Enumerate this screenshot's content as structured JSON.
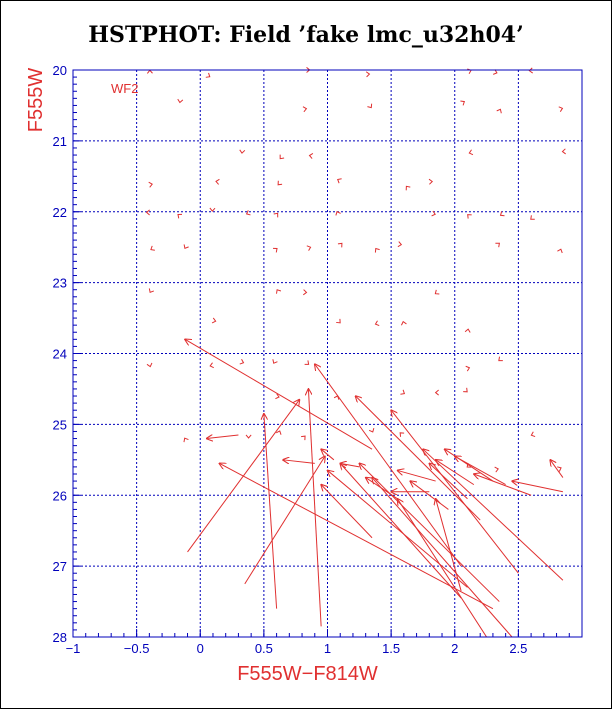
{
  "chart_data": {
    "type": "scatter",
    "title": "HSTPHOT: Field ’fake lmc_u32h04’",
    "chip_label": "WF2",
    "xlabel": "F555W−F814W",
    "ylabel": "F555W",
    "xlim": [
      -1,
      3
    ],
    "ylim": [
      28,
      20
    ],
    "xticks": [
      -1,
      -0.5,
      0,
      0.5,
      1,
      1.5,
      2,
      2.5
    ],
    "xtick_labels": [
      "−1",
      "−0.5",
      "0",
      "0.5",
      "1",
      "1.5",
      "2",
      "2.5"
    ],
    "yticks": [
      20,
      21,
      22,
      23,
      24,
      25,
      26,
      27,
      28
    ],
    "ytick_labels": [
      "20",
      "21",
      "22",
      "23",
      "24",
      "25",
      "26",
      "27",
      "28"
    ],
    "grid": true,
    "color": "#e03030",
    "grid_color": "#0000bb",
    "small_glyph_rows_mag": [
      20.05,
      20.5,
      21.2,
      21.6,
      22.05,
      22.5,
      23.15,
      23.6,
      24.15,
      24.6,
      25.15,
      25.6
    ],
    "small_glyph_cols_color": [
      -0.4,
      -0.15,
      0.1,
      0.35,
      0.6,
      0.85,
      1.1,
      1.35,
      1.6,
      1.85,
      2.1,
      2.35,
      2.6,
      2.85
    ],
    "arrows": [
      {
        "x0": -0.1,
        "y0": 26.8,
        "x1": 0.78,
        "y1": 24.65
      },
      {
        "x0": 0.35,
        "y0": 27.25,
        "x1": 0.98,
        "y1": 25.45
      },
      {
        "x0": 0.6,
        "y0": 27.6,
        "x1": 0.5,
        "y1": 24.85
      },
      {
        "x0": 0.95,
        "y0": 27.85,
        "x1": 0.85,
        "y1": 24.5
      },
      {
        "x0": 1.35,
        "y0": 25.35,
        "x1": -0.12,
        "y1": 23.8
      },
      {
        "x0": 2.05,
        "y0": 27.0,
        "x1": 0.9,
        "y1": 24.15
      },
      {
        "x0": 0.3,
        "y0": 25.15,
        "x1": 0.05,
        "y1": 25.2
      },
      {
        "x0": 1.35,
        "y0": 26.6,
        "x1": 0.95,
        "y1": 25.85
      },
      {
        "x0": 2.3,
        "y0": 27.6,
        "x1": 0.15,
        "y1": 25.55
      },
      {
        "x0": 2.1,
        "y0": 27.3,
        "x1": 1.0,
        "y1": 25.65
      },
      {
        "x0": 2.25,
        "y0": 28.0,
        "x1": 1.55,
        "y1": 26.05
      },
      {
        "x0": 2.05,
        "y0": 27.45,
        "x1": 1.1,
        "y1": 25.55
      },
      {
        "x0": 2.2,
        "y0": 26.35,
        "x1": 1.22,
        "y1": 24.6
      },
      {
        "x0": 2.35,
        "y0": 27.5,
        "x1": 1.25,
        "y1": 25.55
      },
      {
        "x0": 2.45,
        "y0": 28.0,
        "x1": 1.35,
        "y1": 25.75
      },
      {
        "x0": 2.5,
        "y0": 27.1,
        "x1": 1.5,
        "y1": 24.8
      },
      {
        "x0": 2.85,
        "y0": 27.2,
        "x1": 1.75,
        "y1": 25.35
      },
      {
        "x0": 1.55,
        "y0": 26.05,
        "x1": 1.3,
        "y1": 25.75
      },
      {
        "x0": 1.95,
        "y0": 26.2,
        "x1": 1.65,
        "y1": 25.8
      },
      {
        "x0": 1.8,
        "y0": 25.95,
        "x1": 1.5,
        "y1": 25.95
      },
      {
        "x0": 1.85,
        "y0": 25.8,
        "x1": 1.55,
        "y1": 25.65
      },
      {
        "x0": 2.1,
        "y0": 26.05,
        "x1": 1.8,
        "y1": 25.55
      },
      {
        "x0": 2.15,
        "y0": 25.85,
        "x1": 1.85,
        "y1": 25.5
      },
      {
        "x0": 2.3,
        "y0": 25.8,
        "x1": 1.92,
        "y1": 25.35
      },
      {
        "x0": 2.4,
        "y0": 25.85,
        "x1": 2.0,
        "y1": 25.45
      },
      {
        "x0": 2.6,
        "y0": 26.0,
        "x1": 2.15,
        "y1": 25.7
      },
      {
        "x0": 2.85,
        "y0": 25.95,
        "x1": 2.45,
        "y1": 25.8
      },
      {
        "x0": 2.85,
        "y0": 25.75,
        "x1": 2.75,
        "y1": 25.5
      },
      {
        "x0": 2.05,
        "y0": 27.35,
        "x1": 1.85,
        "y1": 26.05
      },
      {
        "x0": 0.9,
        "y0": 25.55,
        "x1": 0.65,
        "y1": 25.5
      },
      {
        "x0": 1.25,
        "y0": 25.6,
        "x1": 1.1,
        "y1": 25.55
      },
      {
        "x0": 1.05,
        "y0": 25.5,
        "x1": 0.95,
        "y1": 25.35
      }
    ]
  }
}
